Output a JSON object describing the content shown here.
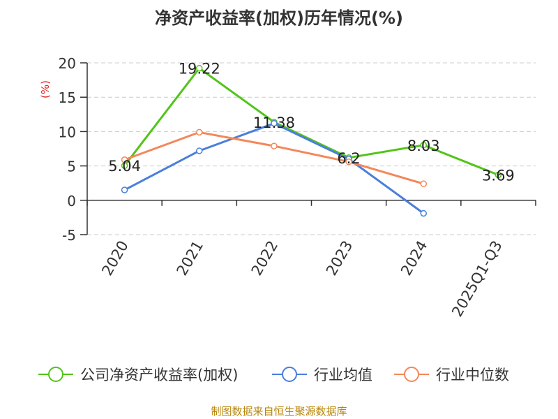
{
  "chart_data": {
    "type": "line",
    "title": "净资产收益率(加权)历年情况(%)",
    "ylabel": "(%)",
    "xlabel": "",
    "categories": [
      "2020",
      "2021",
      "2022",
      "2023",
      "2024",
      "2025Q1-Q3"
    ],
    "ylim": [
      -5,
      20
    ],
    "yticks": [
      -5,
      0,
      5,
      10,
      15,
      20
    ],
    "ytick_labels": [
      "-5",
      "0",
      "5",
      "10",
      "15",
      "20"
    ],
    "grid": true,
    "legend_position": "bottom",
    "series": [
      {
        "name": "公司净资产收益率(加权)",
        "color": "#52c41a",
        "values": [
          5.04,
          19.22,
          11.38,
          6.2,
          8.03,
          3.69
        ],
        "labels": [
          "5.04",
          "19.22",
          "11.38",
          "6.2",
          "8.03",
          "3.69"
        ]
      },
      {
        "name": "行业均值",
        "color": "#4a7fdb",
        "values": [
          1.5,
          7.2,
          11.2,
          6.0,
          -1.9,
          null
        ]
      },
      {
        "name": "行业中位数",
        "color": "#f4875a",
        "values": [
          5.9,
          9.9,
          7.9,
          5.6,
          2.4,
          null
        ]
      }
    ],
    "source": "制图数据来自恒生聚源数据库"
  }
}
